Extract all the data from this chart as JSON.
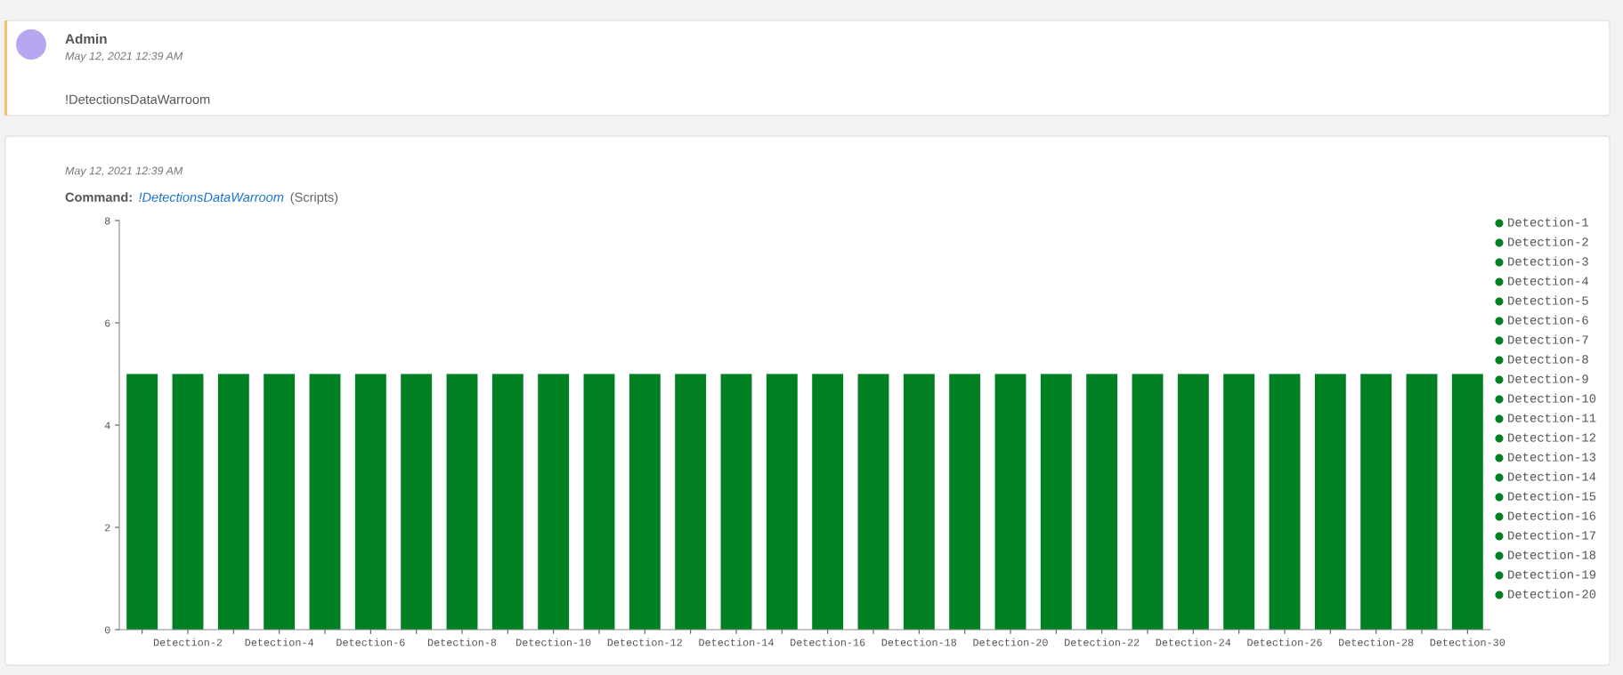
{
  "chart_data": {
    "type": "bar",
    "annotations": [
      "Admin",
      "May 12, 2021 12:39 AM",
      "!DetectionsDataWarroom",
      "May 12, 2021 12:39 AM",
      "Command:",
      "!DetectionsDataWarroom",
      "(Scripts)"
    ],
    "categories": [
      null,
      "Detection-2",
      null,
      "Detection-4",
      null,
      "Detection-6",
      null,
      "Detection-8",
      null,
      "Detection-10",
      null,
      "Detection-12",
      null,
      "Detection-14",
      null,
      "Detection-16",
      null,
      "Detection-18",
      null,
      "Detection-20",
      null,
      "Detection-22",
      null,
      "Detection-24",
      null,
      "Detection-26",
      null,
      "Detection-28",
      null,
      "Detection-30"
    ],
    "series": [
      {
        "name": "Detection-1",
        "color": "#008022",
        "values": [
          5,
          null,
          null,
          null,
          null,
          null,
          null,
          null,
          null,
          null,
          null,
          null,
          null,
          null,
          null,
          null,
          null,
          null,
          null,
          null,
          null,
          null,
          null,
          null,
          null,
          null,
          null,
          null,
          null,
          null
        ]
      },
      {
        "name": "Detection-2",
        "color": "#008022",
        "values": [
          null,
          5,
          null,
          null,
          null,
          null,
          null,
          null,
          null,
          null,
          null,
          null,
          null,
          null,
          null,
          null,
          null,
          null,
          null,
          null,
          null,
          null,
          null,
          null,
          null,
          null,
          null,
          null,
          null,
          null
        ]
      },
      {
        "name": "Detection-3",
        "color": "#008022",
        "values": [
          null,
          null,
          5,
          null,
          null,
          null,
          null,
          null,
          null,
          null,
          null,
          null,
          null,
          null,
          null,
          null,
          null,
          null,
          null,
          null,
          null,
          null,
          null,
          null,
          null,
          null,
          null,
          null,
          null,
          null
        ]
      },
      {
        "name": "Detection-4",
        "color": "#008022",
        "values": [
          null,
          null,
          null,
          5,
          null,
          null,
          null,
          null,
          null,
          null,
          null,
          null,
          null,
          null,
          null,
          null,
          null,
          null,
          null,
          null,
          null,
          null,
          null,
          null,
          null,
          null,
          null,
          null,
          null,
          null
        ]
      },
      {
        "name": "Detection-5",
        "color": "#008022",
        "values": [
          null,
          null,
          null,
          null,
          5,
          null,
          null,
          null,
          null,
          null,
          null,
          null,
          null,
          null,
          null,
          null,
          null,
          null,
          null,
          null,
          null,
          null,
          null,
          null,
          null,
          null,
          null,
          null,
          null,
          null
        ]
      },
      {
        "name": "Detection-6",
        "color": "#008022",
        "values": [
          null,
          null,
          null,
          null,
          null,
          5,
          null,
          null,
          null,
          null,
          null,
          null,
          null,
          null,
          null,
          null,
          null,
          null,
          null,
          null,
          null,
          null,
          null,
          null,
          null,
          null,
          null,
          null,
          null,
          null
        ]
      },
      {
        "name": "Detection-7",
        "color": "#008022",
        "values": [
          null,
          null,
          null,
          null,
          null,
          null,
          5,
          null,
          null,
          null,
          null,
          null,
          null,
          null,
          null,
          null,
          null,
          null,
          null,
          null,
          null,
          null,
          null,
          null,
          null,
          null,
          null,
          null,
          null,
          null
        ]
      },
      {
        "name": "Detection-8",
        "color": "#008022",
        "values": [
          null,
          null,
          null,
          null,
          null,
          null,
          null,
          5,
          null,
          null,
          null,
          null,
          null,
          null,
          null,
          null,
          null,
          null,
          null,
          null,
          null,
          null,
          null,
          null,
          null,
          null,
          null,
          null,
          null,
          null
        ]
      },
      {
        "name": "Detection-9",
        "color": "#008022",
        "values": [
          null,
          null,
          null,
          null,
          null,
          null,
          null,
          null,
          5,
          null,
          null,
          null,
          null,
          null,
          null,
          null,
          null,
          null,
          null,
          null,
          null,
          null,
          null,
          null,
          null,
          null,
          null,
          null,
          null,
          null
        ]
      },
      {
        "name": "Detection-10",
        "color": "#008022",
        "values": [
          null,
          null,
          null,
          null,
          null,
          null,
          null,
          null,
          null,
          5,
          null,
          null,
          null,
          null,
          null,
          null,
          null,
          null,
          null,
          null,
          null,
          null,
          null,
          null,
          null,
          null,
          null,
          null,
          null,
          null
        ]
      },
      {
        "name": "Detection-11",
        "color": "#008022",
        "values": [
          null,
          null,
          null,
          null,
          null,
          null,
          null,
          null,
          null,
          null,
          5,
          null,
          null,
          null,
          null,
          null,
          null,
          null,
          null,
          null,
          null,
          null,
          null,
          null,
          null,
          null,
          null,
          null,
          null,
          null
        ]
      },
      {
        "name": "Detection-12",
        "color": "#008022",
        "values": [
          null,
          null,
          null,
          null,
          null,
          null,
          null,
          null,
          null,
          null,
          null,
          5,
          null,
          null,
          null,
          null,
          null,
          null,
          null,
          null,
          null,
          null,
          null,
          null,
          null,
          null,
          null,
          null,
          null,
          null
        ]
      },
      {
        "name": "Detection-13",
        "color": "#008022",
        "values": [
          null,
          null,
          null,
          null,
          null,
          null,
          null,
          null,
          null,
          null,
          null,
          null,
          5,
          null,
          null,
          null,
          null,
          null,
          null,
          null,
          null,
          null,
          null,
          null,
          null,
          null,
          null,
          null,
          null,
          null
        ]
      },
      {
        "name": "Detection-14",
        "color": "#008022",
        "values": [
          null,
          null,
          null,
          null,
          null,
          null,
          null,
          null,
          null,
          null,
          null,
          null,
          null,
          5,
          null,
          null,
          null,
          null,
          null,
          null,
          null,
          null,
          null,
          null,
          null,
          null,
          null,
          null,
          null,
          null
        ]
      },
      {
        "name": "Detection-15",
        "color": "#008022",
        "values": [
          null,
          null,
          null,
          null,
          null,
          null,
          null,
          null,
          null,
          null,
          null,
          null,
          null,
          null,
          5,
          null,
          null,
          null,
          null,
          null,
          null,
          null,
          null,
          null,
          null,
          null,
          null,
          null,
          null,
          null
        ]
      },
      {
        "name": "Detection-16",
        "color": "#008022",
        "values": [
          null,
          null,
          null,
          null,
          null,
          null,
          null,
          null,
          null,
          null,
          null,
          null,
          null,
          null,
          null,
          5,
          null,
          null,
          null,
          null,
          null,
          null,
          null,
          null,
          null,
          null,
          null,
          null,
          null,
          null
        ]
      },
      {
        "name": "Detection-17",
        "color": "#008022",
        "values": [
          null,
          null,
          null,
          null,
          null,
          null,
          null,
          null,
          null,
          null,
          null,
          null,
          null,
          null,
          null,
          null,
          5,
          null,
          null,
          null,
          null,
          null,
          null,
          null,
          null,
          null,
          null,
          null,
          null,
          null
        ]
      },
      {
        "name": "Detection-18",
        "color": "#008022",
        "values": [
          null,
          null,
          null,
          null,
          null,
          null,
          null,
          null,
          null,
          null,
          null,
          null,
          null,
          null,
          null,
          null,
          null,
          5,
          null,
          null,
          null,
          null,
          null,
          null,
          null,
          null,
          null,
          null,
          null,
          null
        ]
      },
      {
        "name": "Detection-19",
        "color": "#008022",
        "values": [
          null,
          null,
          null,
          null,
          null,
          null,
          null,
          null,
          null,
          null,
          null,
          null,
          null,
          null,
          null,
          null,
          null,
          null,
          5,
          null,
          null,
          null,
          null,
          null,
          null,
          null,
          null,
          null,
          null,
          null
        ]
      },
      {
        "name": "Detection-20",
        "color": "#008022",
        "values": [
          null,
          null,
          null,
          null,
          null,
          null,
          null,
          null,
          null,
          null,
          null,
          null,
          null,
          null,
          null,
          null,
          null,
          null,
          null,
          5,
          null,
          null,
          null,
          null,
          null,
          null,
          null,
          null,
          null,
          null
        ]
      },
      {
        "color": "#008022",
        "values": [
          null,
          null,
          null,
          null,
          null,
          null,
          null,
          null,
          null,
          null,
          null,
          null,
          null,
          null,
          null,
          null,
          null,
          null,
          null,
          null,
          5,
          null,
          null,
          null,
          null,
          null,
          null,
          null,
          null,
          null
        ]
      },
      {
        "color": "#008022",
        "values": [
          null,
          null,
          null,
          null,
          null,
          null,
          null,
          null,
          null,
          null,
          null,
          null,
          null,
          null,
          null,
          null,
          null,
          null,
          null,
          null,
          null,
          5,
          null,
          null,
          null,
          null,
          null,
          null,
          null,
          null
        ]
      },
      {
        "color": "#008022",
        "values": [
          null,
          null,
          null,
          null,
          null,
          null,
          null,
          null,
          null,
          null,
          null,
          null,
          null,
          null,
          null,
          null,
          null,
          null,
          null,
          null,
          null,
          null,
          5,
          null,
          null,
          null,
          null,
          null,
          null,
          null
        ]
      },
      {
        "color": "#008022",
        "values": [
          null,
          null,
          null,
          null,
          null,
          null,
          null,
          null,
          null,
          null,
          null,
          null,
          null,
          null,
          null,
          null,
          null,
          null,
          null,
          null,
          null,
          null,
          null,
          5,
          null,
          null,
          null,
          null,
          null,
          null
        ]
      },
      {
        "color": "#008022",
        "values": [
          null,
          null,
          null,
          null,
          null,
          null,
          null,
          null,
          null,
          null,
          null,
          null,
          null,
          null,
          null,
          null,
          null,
          null,
          null,
          null,
          null,
          null,
          null,
          null,
          5,
          null,
          null,
          null,
          null,
          null
        ]
      },
      {
        "color": "#008022",
        "values": [
          null,
          null,
          null,
          null,
          null,
          null,
          null,
          null,
          null,
          null,
          null,
          null,
          null,
          null,
          null,
          null,
          null,
          null,
          null,
          null,
          null,
          null,
          null,
          null,
          null,
          5,
          null,
          null,
          null,
          null
        ]
      },
      {
        "color": "#008022",
        "values": [
          null,
          null,
          null,
          null,
          null,
          null,
          null,
          null,
          null,
          null,
          null,
          null,
          null,
          null,
          null,
          null,
          null,
          null,
          null,
          null,
          null,
          null,
          null,
          null,
          null,
          null,
          5,
          null,
          null,
          null
        ]
      },
      {
        "color": "#008022",
        "values": [
          null,
          null,
          null,
          null,
          null,
          null,
          null,
          null,
          null,
          null,
          null,
          null,
          null,
          null,
          null,
          null,
          null,
          null,
          null,
          null,
          null,
          null,
          null,
          null,
          null,
          null,
          null,
          5,
          null,
          null
        ]
      },
      {
        "color": "#008022",
        "values": [
          null,
          null,
          null,
          null,
          null,
          null,
          null,
          null,
          null,
          null,
          null,
          null,
          null,
          null,
          null,
          null,
          null,
          null,
          null,
          null,
          null,
          null,
          null,
          null,
          null,
          null,
          null,
          null,
          5,
          null
        ]
      },
      {
        "color": "#008022",
        "values": [
          null,
          null,
          null,
          null,
          null,
          null,
          null,
          null,
          null,
          null,
          null,
          null,
          null,
          null,
          null,
          null,
          null,
          null,
          null,
          null,
          null,
          null,
          null,
          null,
          null,
          null,
          null,
          null,
          null,
          5
        ]
      }
    ],
    "ylim": [
      0,
      8
    ],
    "yticks": [
      0,
      2,
      4,
      6,
      8
    ],
    "legend": "right"
  }
}
